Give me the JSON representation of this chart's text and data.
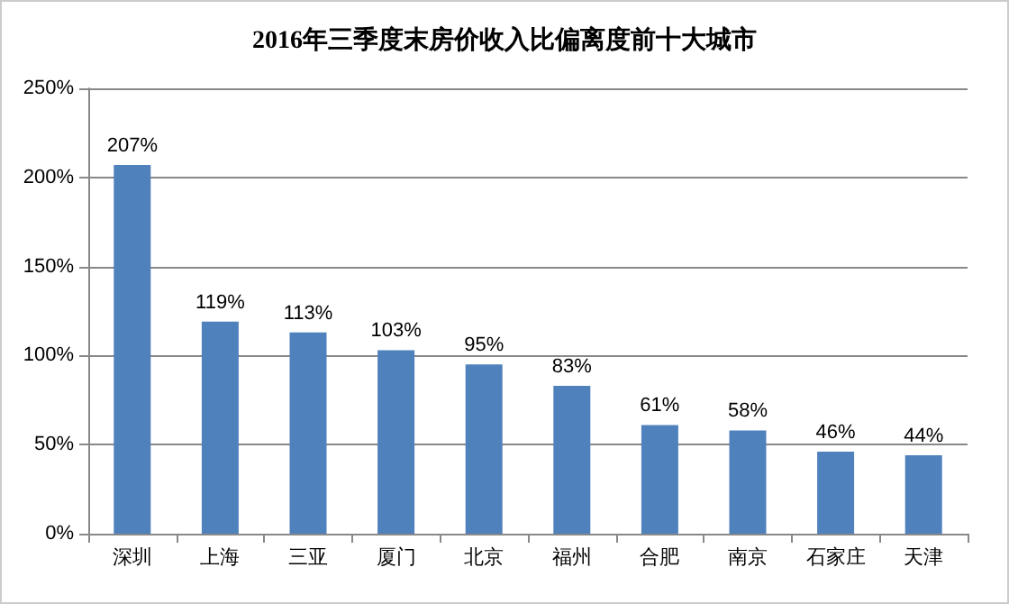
{
  "chart_data": {
    "type": "bar",
    "title": "2016年三季度末房价收入比偏离度前十大城市",
    "categories": [
      "深圳",
      "上海",
      "三亚",
      "厦门",
      "北京",
      "福州",
      "合肥",
      "南京",
      "石家庄",
      "天津"
    ],
    "values": [
      207,
      119,
      113,
      103,
      95,
      83,
      61,
      58,
      46,
      44
    ],
    "value_labels": [
      "207%",
      "119%",
      "113%",
      "103%",
      "95%",
      "83%",
      "61%",
      "58%",
      "46%",
      "44%"
    ],
    "color": "#4f81bd",
    "ylim": [
      0,
      250
    ],
    "yticks": [
      {
        "value": 0,
        "label": "0%"
      },
      {
        "value": 50,
        "label": "50%"
      },
      {
        "value": 100,
        "label": "100%"
      },
      {
        "value": 150,
        "label": "150%"
      },
      {
        "value": 200,
        "label": "200%"
      },
      {
        "value": 250,
        "label": "250%"
      }
    ],
    "grid": "y"
  }
}
